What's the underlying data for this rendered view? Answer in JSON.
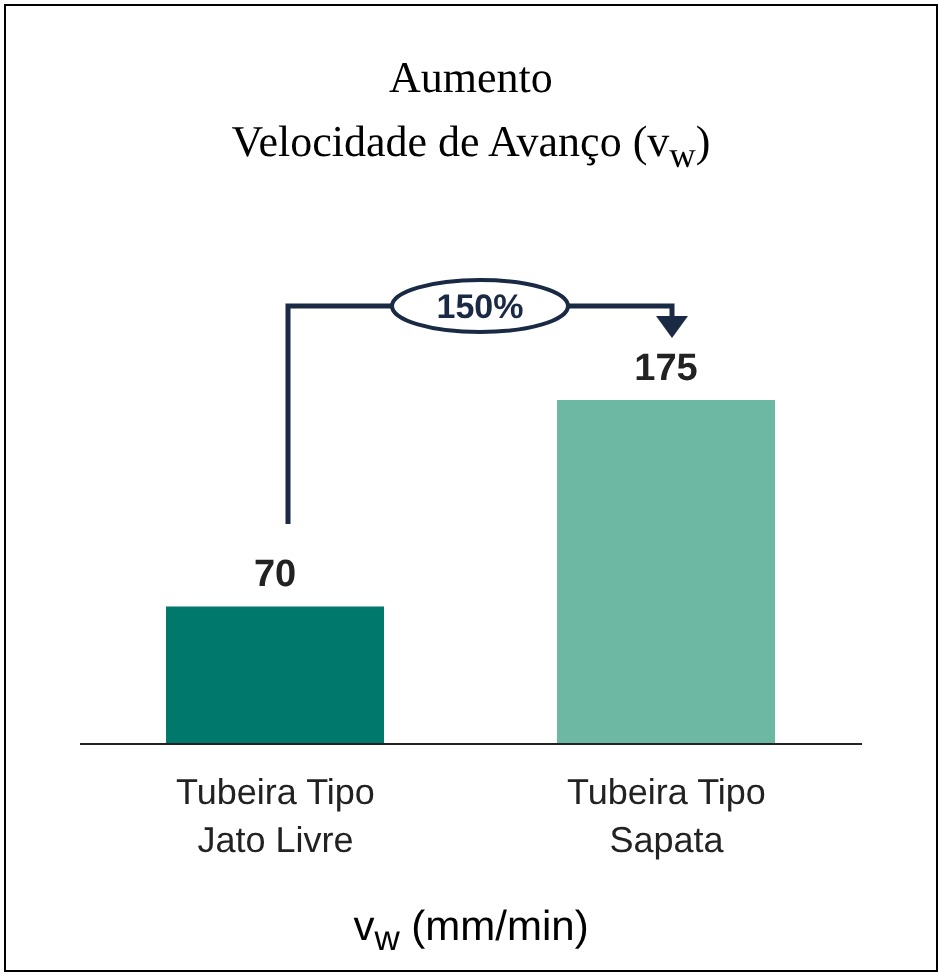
{
  "chart_data": {
    "type": "bar",
    "title": "Aumento",
    "subtitle": "Velocidade de Avanço (v$_{w}$)",
    "xlabel": "v$_{w}$ (mm/min)",
    "categories": [
      "Tubeira Tipo Jato Livre",
      "Tubeira Tipo Sapata"
    ],
    "values": [
      70,
      175
    ],
    "colors": [
      "#00786b",
      "#6cb8a2"
    ],
    "data_labels": true,
    "annotations": [
      "150%"
    ]
  }
}
